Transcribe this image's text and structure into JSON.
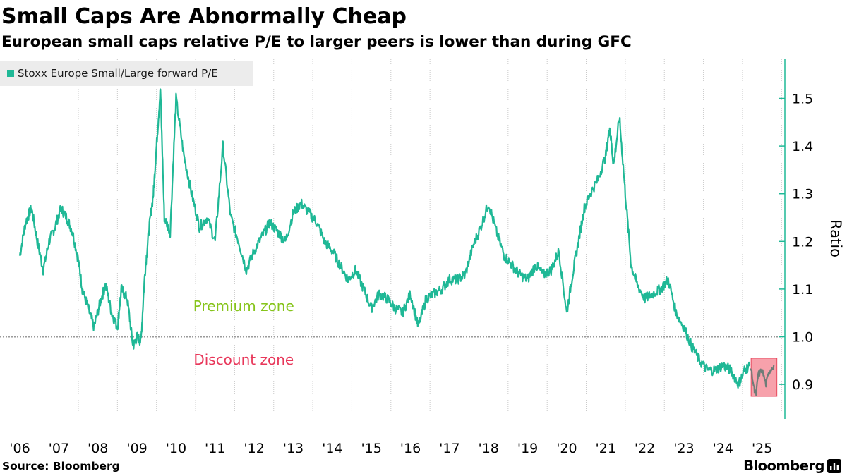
{
  "header": {
    "title": "Small Caps Are Abnormally Cheap",
    "subtitle": "European small caps relative P/E to larger peers is lower than during GFC"
  },
  "footer": {
    "source": "Source: Bloomberg",
    "brand": "Bloomberg"
  },
  "colors": {
    "series": "#1fb896",
    "highlight_series": "#6f7d78",
    "highlight_box_fill": "#f7a1ab",
    "highlight_box_stroke": "#e8475c",
    "premium_text": "#86c41b",
    "discount_text": "#e8375a",
    "axis": "#1fb896",
    "reference_line": "#9a9a9a",
    "grid": "#c8c8c8"
  },
  "chart_data": {
    "type": "line",
    "title": "Small Caps Are Abnormally Cheap",
    "subtitle": "European small caps relative P/E to larger peers is lower than during GFC",
    "ylabel": "Ratio",
    "xlabel": "",
    "ylim": [
      0.82,
      1.58
    ],
    "xlim": [
      2006.0,
      2025.6
    ],
    "y_ticks": [
      "0.9",
      "1.0",
      "1.1",
      "1.2",
      "1.3",
      "1.4",
      "1.5"
    ],
    "x_tick_labels": [
      "'06",
      "'07",
      "'08",
      "'09",
      "'10",
      "'11",
      "'12",
      "'13",
      "'14",
      "'15",
      "'16",
      "'17",
      "'18",
      "'19",
      "'20",
      "'21",
      "'22",
      "'23",
      "'24",
      "'25"
    ],
    "gridlines": "vertical-dashed",
    "legend": "top-left",
    "reference_line": 1.0,
    "series": [
      {
        "name": "Stoxx Europe Small/Large forward P/E",
        "x": [
          2006.0,
          2006.15,
          2006.3,
          2006.45,
          2006.6,
          2006.75,
          2006.9,
          2007.05,
          2007.2,
          2007.35,
          2007.5,
          2007.6,
          2007.75,
          2007.9,
          2008.05,
          2008.2,
          2008.35,
          2008.5,
          2008.6,
          2008.75,
          2008.9,
          2009.0,
          2009.1,
          2009.2,
          2009.3,
          2009.42,
          2009.5,
          2009.6,
          2009.7,
          2009.85,
          2010.0,
          2010.2,
          2010.4,
          2010.6,
          2010.8,
          2011.0,
          2011.2,
          2011.4,
          2011.6,
          2011.8,
          2012.0,
          2012.2,
          2012.4,
          2012.6,
          2012.8,
          2013.0,
          2013.2,
          2013.4,
          2013.6,
          2013.8,
          2014.0,
          2014.2,
          2014.4,
          2014.6,
          2014.8,
          2015.0,
          2015.2,
          2015.4,
          2015.6,
          2015.8,
          2016.0,
          2016.2,
          2016.4,
          2016.6,
          2016.8,
          2017.0,
          2017.2,
          2017.4,
          2017.6,
          2017.8,
          2018.0,
          2018.2,
          2018.4,
          2018.6,
          2018.8,
          2019.0,
          2019.2,
          2019.4,
          2019.6,
          2019.8,
          2020.0,
          2020.15,
          2020.3,
          2020.45,
          2020.6,
          2020.8,
          2021.0,
          2021.1,
          2021.2,
          2021.35,
          2021.5,
          2021.65,
          2021.8,
          2022.0,
          2022.2,
          2022.4,
          2022.6,
          2022.8,
          2023.0,
          2023.2,
          2023.4,
          2023.6,
          2023.8,
          2024.0,
          2024.2,
          2024.4,
          2024.55,
          2024.7
        ],
        "values": [
          1.17,
          1.24,
          1.27,
          1.2,
          1.14,
          1.2,
          1.23,
          1.27,
          1.25,
          1.22,
          1.16,
          1.1,
          1.06,
          1.02,
          1.07,
          1.11,
          1.05,
          1.02,
          1.1,
          1.08,
          0.98,
          1.0,
          0.99,
          1.13,
          1.22,
          1.3,
          1.4,
          1.52,
          1.25,
          1.22,
          1.5,
          1.38,
          1.3,
          1.23,
          1.25,
          1.2,
          1.4,
          1.25,
          1.2,
          1.14,
          1.18,
          1.21,
          1.24,
          1.22,
          1.2,
          1.26,
          1.28,
          1.26,
          1.24,
          1.2,
          1.18,
          1.15,
          1.12,
          1.14,
          1.1,
          1.06,
          1.09,
          1.08,
          1.06,
          1.05,
          1.09,
          1.02,
          1.08,
          1.09,
          1.1,
          1.12,
          1.12,
          1.13,
          1.19,
          1.23,
          1.28,
          1.22,
          1.17,
          1.15,
          1.13,
          1.12,
          1.15,
          1.13,
          1.14,
          1.18,
          1.05,
          1.13,
          1.2,
          1.27,
          1.3,
          1.33,
          1.38,
          1.44,
          1.36,
          1.46,
          1.3,
          1.15,
          1.11,
          1.08,
          1.09,
          1.1,
          1.12,
          1.05,
          1.02,
          0.98,
          0.95,
          0.93,
          0.93,
          0.94,
          0.93,
          0.9,
          0.93,
          0.94
        ],
        "highlighted_segment": {
          "x": [
            2024.7,
            2024.8,
            2024.85,
            2024.9,
            2025.0,
            2025.1,
            2025.2,
            2025.3
          ],
          "values": [
            0.94,
            0.89,
            0.88,
            0.92,
            0.93,
            0.9,
            0.93,
            0.94
          ]
        }
      }
    ],
    "annotations": [
      {
        "text": "Premium zone",
        "x": 2009.6,
        "y": 1.06
      },
      {
        "text": "Discount zone",
        "x": 2009.6,
        "y": 0.95
      }
    ],
    "highlight_box": {
      "x0": 2024.72,
      "x1": 2025.38,
      "y0": 0.875,
      "y1": 0.955
    }
  }
}
